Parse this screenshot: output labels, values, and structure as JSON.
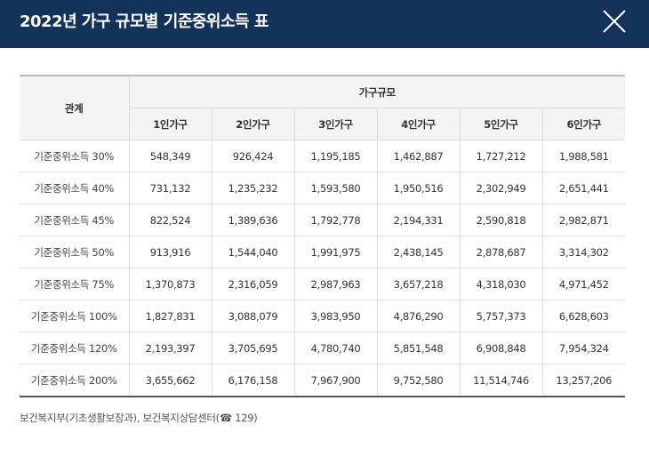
{
  "header": {
    "title": "2022년 가구 규모별 기준중위소득 표"
  },
  "table": {
    "row_header": "관계",
    "group_header": "가구규모",
    "columns": [
      "1인가구",
      "2인가구",
      "3인가구",
      "4인가구",
      "5인가구",
      "6인가구"
    ],
    "rows": [
      [
        "기준중위소득 30%",
        "548,349",
        "926,424",
        "1,195,185",
        "1,462,887",
        "1,727,212",
        "1,988,581"
      ],
      [
        "기준중위소득 40%",
        "731,132",
        "1,235,232",
        "1,593,580",
        "1,950,516",
        "2,302,949",
        "2,651,441"
      ],
      [
        "기준중위소득 45%",
        "822,524",
        "1,389,636",
        "1,792,778",
        "2,194,331",
        "2,590,818",
        "2,982,871"
      ],
      [
        "기준중위소득 50%",
        "913,916",
        "1,544,040",
        "1,991,975",
        "2,438,145",
        "2,878,687",
        "3,314,302"
      ],
      [
        "기준중위소득 75%",
        "1,370,873",
        "2,316,059",
        "2,987,963",
        "3,657,218",
        "4,318,030",
        "4,971,452"
      ],
      [
        "기준중위소득 100%",
        "1,827,831",
        "3,088,079",
        "3,983,950",
        "4,876,290",
        "5,757,373",
        "6,628,603"
      ],
      [
        "기준중위소득 120%",
        "2,193,397",
        "3,705,695",
        "4,780,740",
        "5,851,548",
        "6,908,848",
        "7,954,324"
      ],
      [
        "기준중위소득 200%",
        "3,655,662",
        "6,176,158",
        "7,967,900",
        "9,752,580",
        "11,514,746",
        "13,257,206"
      ]
    ]
  },
  "footer": {
    "source": "보건복지부(기초생활보장과), 보건복지상담센터(☎ 129)"
  }
}
